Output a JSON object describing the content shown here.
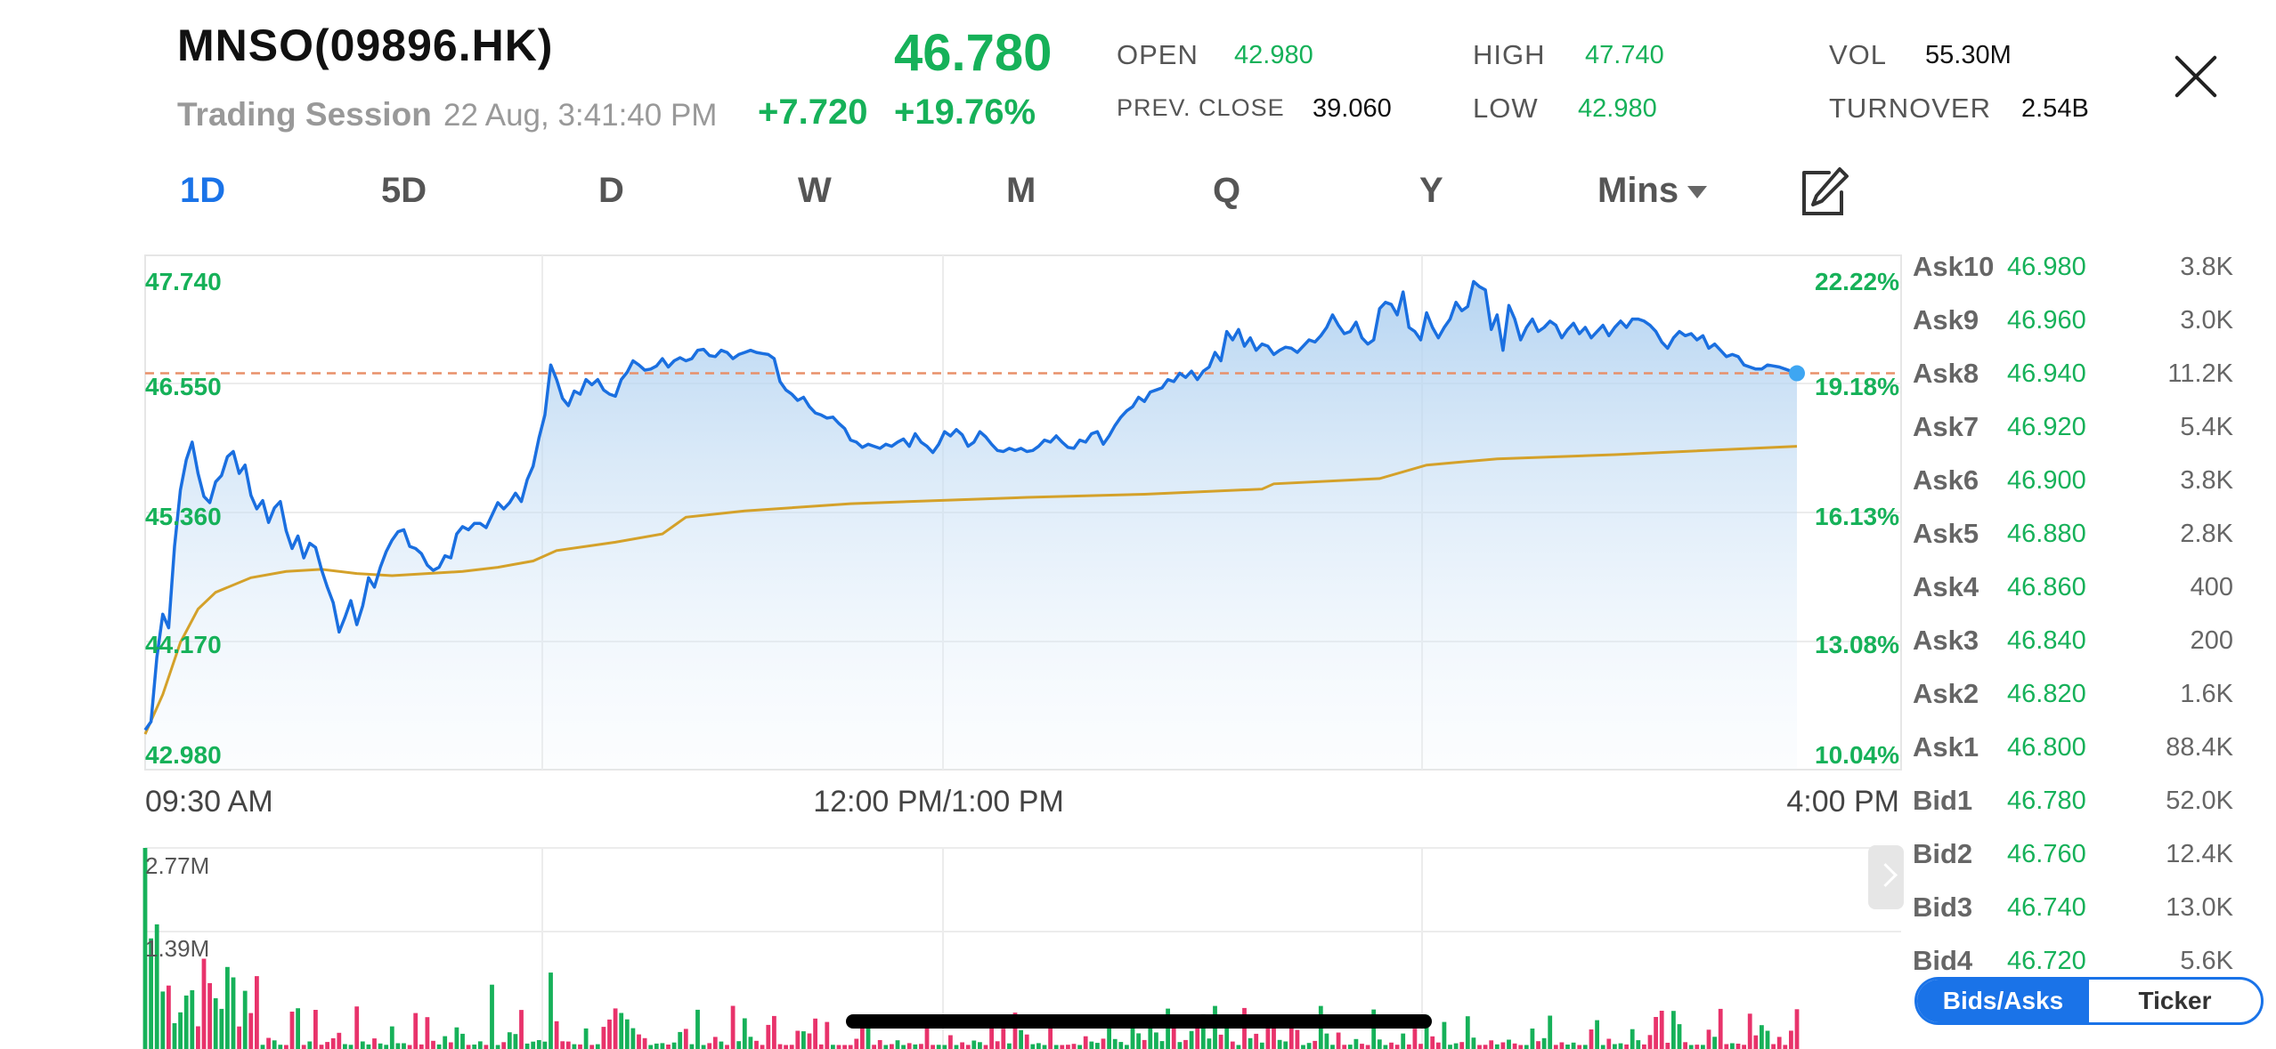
{
  "header": {
    "title": "MNSO(09896.HK)",
    "session_label": "Trading Session",
    "session_time": "22 Aug, 3:41:40 PM",
    "price": "46.780",
    "change": "+7.720",
    "change_pct": "+19.76%"
  },
  "stats": {
    "open_label": "OPEN",
    "open": "42.980",
    "prev_close_label": "PREV. CLOSE",
    "prev_close": "39.060",
    "high_label": "HIGH",
    "high": "47.740",
    "low_label": "LOW",
    "low": "42.980",
    "vol_label": "VOL",
    "vol": "55.30M",
    "turnover_label": "TURNOVER",
    "turnover": "2.54B"
  },
  "tabs": [
    {
      "label": "1D",
      "active": true
    },
    {
      "label": "5D",
      "active": false
    },
    {
      "label": "D",
      "active": false
    },
    {
      "label": "W",
      "active": false
    },
    {
      "label": "M",
      "active": false
    },
    {
      "label": "Q",
      "active": false
    },
    {
      "label": "Y",
      "active": false
    },
    {
      "label": "Mins",
      "active": false
    }
  ],
  "colors": {
    "up": "#16b159",
    "down": "#e8336b",
    "price_line": "#1a6fe0",
    "avg_line": "#d4a12a",
    "ref_line": "#e8906a",
    "accent": "#1a73e8"
  },
  "chart_data": {
    "type": "line",
    "y_left_ticks": [
      "47.740",
      "46.550",
      "45.360",
      "44.170",
      "42.980"
    ],
    "y_right_ticks": [
      "22.22%",
      "19.18%",
      "16.13%",
      "13.08%",
      "10.04%"
    ],
    "x_ticks": [
      "09:30 AM",
      "12:00 PM/1:00 PM",
      "4:00 PM"
    ],
    "ylim": [
      42.98,
      47.74
    ],
    "reference_price": 46.78,
    "price_series": [
      [
        0,
        43.36
      ],
      [
        1,
        43.44
      ],
      [
        2,
        44.06
      ],
      [
        3,
        44.47
      ],
      [
        4,
        44.34
      ],
      [
        5,
        45.12
      ],
      [
        6,
        45.66
      ],
      [
        7,
        45.95
      ],
      [
        8,
        46.12
      ],
      [
        9,
        45.82
      ],
      [
        10,
        45.6
      ],
      [
        11,
        45.54
      ],
      [
        12,
        45.74
      ],
      [
        13,
        45.8
      ],
      [
        14,
        45.98
      ],
      [
        15,
        46.03
      ],
      [
        16,
        45.82
      ],
      [
        17,
        45.9
      ],
      [
        18,
        45.61
      ],
      [
        19,
        45.48
      ],
      [
        20,
        45.56
      ],
      [
        21,
        45.35
      ],
      [
        22,
        45.49
      ],
      [
        23,
        45.55
      ],
      [
        24,
        45.27
      ],
      [
        25,
        45.1
      ],
      [
        26,
        45.22
      ],
      [
        27,
        45.01
      ],
      [
        28,
        45.15
      ],
      [
        29,
        45.11
      ],
      [
        30,
        44.9
      ],
      [
        31,
        44.73
      ],
      [
        32,
        44.58
      ],
      [
        33,
        44.3
      ],
      [
        34,
        44.44
      ],
      [
        35,
        44.6
      ],
      [
        36,
        44.37
      ],
      [
        37,
        44.55
      ],
      [
        38,
        44.82
      ],
      [
        39,
        44.73
      ],
      [
        40,
        44.92
      ],
      [
        41,
        45.07
      ],
      [
        42,
        45.18
      ],
      [
        43,
        45.26
      ],
      [
        44,
        45.28
      ],
      [
        45,
        45.12
      ],
      [
        46,
        45.1
      ],
      [
        47,
        45.05
      ],
      [
        48,
        44.94
      ],
      [
        49,
        44.89
      ],
      [
        50,
        44.92
      ],
      [
        51,
        45.03
      ],
      [
        52,
        45.01
      ],
      [
        53,
        45.24
      ],
      [
        54,
        45.31
      ],
      [
        55,
        45.28
      ],
      [
        56,
        45.34
      ],
      [
        57,
        45.34
      ],
      [
        58,
        45.3
      ],
      [
        59,
        45.42
      ],
      [
        60,
        45.54
      ],
      [
        61,
        45.48
      ],
      [
        62,
        45.54
      ],
      [
        63,
        45.63
      ],
      [
        64,
        45.55
      ],
      [
        65,
        45.76
      ],
      [
        66,
        45.89
      ],
      [
        67,
        46.16
      ],
      [
        68,
        46.38
      ],
      [
        69,
        46.86
      ],
      [
        70,
        46.72
      ],
      [
        71,
        46.54
      ],
      [
        72,
        46.47
      ],
      [
        73,
        46.61
      ],
      [
        74,
        46.58
      ],
      [
        75,
        46.72
      ],
      [
        76,
        46.67
      ],
      [
        77,
        46.72
      ],
      [
        78,
        46.62
      ],
      [
        79,
        46.58
      ],
      [
        80,
        46.56
      ],
      [
        81,
        46.72
      ],
      [
        82,
        46.79
      ],
      [
        83,
        46.9
      ],
      [
        84,
        46.86
      ],
      [
        85,
        46.81
      ],
      [
        86,
        46.82
      ],
      [
        87,
        46.85
      ],
      [
        88,
        46.92
      ],
      [
        89,
        46.84
      ],
      [
        90,
        46.9
      ],
      [
        91,
        46.93
      ],
      [
        92,
        46.9
      ],
      [
        93,
        46.92
      ],
      [
        94,
        47.0
      ],
      [
        95,
        47.01
      ],
      [
        96,
        46.95
      ],
      [
        97,
        46.94
      ],
      [
        98,
        47.0
      ],
      [
        99,
        46.98
      ],
      [
        100,
        46.92
      ],
      [
        101,
        46.96
      ],
      [
        102,
        46.98
      ],
      [
        103,
        47.0
      ],
      [
        104,
        46.98
      ],
      [
        105,
        46.97
      ],
      [
        106,
        46.96
      ],
      [
        107,
        46.92
      ],
      [
        108,
        46.7
      ],
      [
        109,
        46.62
      ],
      [
        110,
        46.58
      ],
      [
        111,
        46.52
      ],
      [
        112,
        46.55
      ],
      [
        113,
        46.46
      ],
      [
        114,
        46.4
      ],
      [
        115,
        46.38
      ],
      [
        116,
        46.35
      ],
      [
        117,
        46.36
      ],
      [
        118,
        46.3
      ],
      [
        119,
        46.25
      ],
      [
        120,
        46.14
      ],
      [
        121,
        46.12
      ],
      [
        122,
        46.07
      ],
      [
        123,
        46.1
      ],
      [
        124,
        46.08
      ],
      [
        125,
        46.06
      ],
      [
        126,
        46.1
      ],
      [
        127,
        46.08
      ],
      [
        128,
        46.12
      ],
      [
        129,
        46.15
      ],
      [
        130,
        46.08
      ],
      [
        131,
        46.2
      ],
      [
        132,
        46.12
      ],
      [
        133,
        46.08
      ],
      [
        134,
        46.02
      ],
      [
        135,
        46.1
      ],
      [
        136,
        46.22
      ],
      [
        137,
        46.18
      ],
      [
        138,
        46.24
      ],
      [
        139,
        46.19
      ],
      [
        140,
        46.08
      ],
      [
        141,
        46.12
      ],
      [
        142,
        46.22
      ],
      [
        143,
        46.17
      ],
      [
        144,
        46.1
      ],
      [
        145,
        46.04
      ],
      [
        146,
        46.03
      ],
      [
        147,
        46.06
      ],
      [
        148,
        46.04
      ],
      [
        149,
        46.06
      ],
      [
        150,
        46.03
      ],
      [
        151,
        46.04
      ],
      [
        152,
        46.08
      ],
      [
        153,
        46.14
      ],
      [
        154,
        46.12
      ],
      [
        155,
        46.18
      ],
      [
        156,
        46.12
      ],
      [
        157,
        46.07
      ],
      [
        158,
        46.06
      ],
      [
        159,
        46.14
      ],
      [
        160,
        46.12
      ],
      [
        161,
        46.2
      ],
      [
        162,
        46.22
      ],
      [
        163,
        46.1
      ],
      [
        164,
        46.18
      ],
      [
        165,
        46.28
      ],
      [
        166,
        46.36
      ],
      [
        167,
        46.42
      ],
      [
        168,
        46.46
      ],
      [
        169,
        46.55
      ],
      [
        170,
        46.51
      ],
      [
        171,
        46.6
      ],
      [
        172,
        46.62
      ],
      [
        173,
        46.64
      ],
      [
        174,
        46.72
      ],
      [
        175,
        46.7
      ],
      [
        176,
        46.78
      ],
      [
        177,
        46.74
      ],
      [
        178,
        46.8
      ],
      [
        179,
        46.72
      ],
      [
        180,
        46.8
      ],
      [
        181,
        46.84
      ],
      [
        182,
        46.98
      ],
      [
        183,
        46.9
      ],
      [
        184,
        47.18
      ],
      [
        185,
        47.1
      ],
      [
        186,
        47.2
      ],
      [
        187,
        47.04
      ],
      [
        188,
        47.12
      ],
      [
        189,
        47.0
      ],
      [
        190,
        47.06
      ],
      [
        191,
        47.04
      ],
      [
        192,
        46.96
      ],
      [
        193,
        47.0
      ],
      [
        194,
        47.03
      ],
      [
        195,
        47.02
      ],
      [
        196,
        46.98
      ],
      [
        197,
        47.04
      ],
      [
        198,
        47.1
      ],
      [
        199,
        47.08
      ],
      [
        200,
        47.14
      ],
      [
        201,
        47.22
      ],
      [
        202,
        47.34
      ],
      [
        203,
        47.24
      ],
      [
        204,
        47.16
      ],
      [
        205,
        47.18
      ],
      [
        206,
        47.27
      ],
      [
        207,
        47.12
      ],
      [
        208,
        47.06
      ],
      [
        209,
        47.1
      ],
      [
        210,
        47.4
      ],
      [
        211,
        47.46
      ],
      [
        212,
        47.44
      ],
      [
        213,
        47.34
      ],
      [
        214,
        47.56
      ],
      [
        215,
        47.22
      ],
      [
        216,
        47.18
      ],
      [
        217,
        47.1
      ],
      [
        218,
        47.36
      ],
      [
        219,
        47.22
      ],
      [
        220,
        47.12
      ],
      [
        221,
        47.22
      ],
      [
        222,
        47.3
      ],
      [
        223,
        47.46
      ],
      [
        224,
        47.38
      ],
      [
        225,
        47.42
      ],
      [
        226,
        47.66
      ],
      [
        227,
        47.61
      ],
      [
        228,
        47.58
      ],
      [
        229,
        47.2
      ],
      [
        230,
        47.34
      ],
      [
        231,
        47.0
      ],
      [
        232,
        47.43
      ],
      [
        233,
        47.3
      ],
      [
        234,
        47.1
      ],
      [
        235,
        47.22
      ],
      [
        236,
        47.3
      ],
      [
        237,
        47.18
      ],
      [
        238,
        47.22
      ],
      [
        239,
        47.28
      ],
      [
        240,
        47.24
      ],
      [
        241,
        47.12
      ],
      [
        242,
        47.2
      ],
      [
        243,
        47.26
      ],
      [
        244,
        47.16
      ],
      [
        245,
        47.22
      ],
      [
        246,
        47.12
      ],
      [
        247,
        47.18
      ],
      [
        248,
        47.24
      ],
      [
        249,
        47.14
      ],
      [
        250,
        47.22
      ],
      [
        251,
        47.28
      ],
      [
        252,
        47.22
      ],
      [
        253,
        47.3
      ],
      [
        254,
        47.3
      ],
      [
        255,
        47.28
      ],
      [
        256,
        47.24
      ],
      [
        257,
        47.18
      ],
      [
        258,
        47.08
      ],
      [
        259,
        47.02
      ],
      [
        260,
        47.12
      ],
      [
        261,
        47.18
      ],
      [
        262,
        47.14
      ],
      [
        263,
        47.16
      ],
      [
        264,
        47.1
      ],
      [
        265,
        47.14
      ],
      [
        266,
        47.02
      ],
      [
        267,
        47.06
      ],
      [
        268,
        47.0
      ],
      [
        269,
        46.94
      ],
      [
        270,
        46.96
      ],
      [
        271,
        46.94
      ],
      [
        272,
        46.86
      ],
      [
        273,
        46.84
      ],
      [
        274,
        46.82
      ],
      [
        275,
        46.82
      ],
      [
        276,
        46.86
      ],
      [
        277,
        46.85
      ],
      [
        278,
        46.84
      ],
      [
        279,
        46.82
      ],
      [
        280,
        46.8
      ],
      [
        281,
        46.78
      ]
    ],
    "avg_series": [
      [
        0,
        43.32
      ],
      [
        3,
        43.7
      ],
      [
        6,
        44.2
      ],
      [
        9,
        44.52
      ],
      [
        12,
        44.68
      ],
      [
        18,
        44.82
      ],
      [
        24,
        44.88
      ],
      [
        30,
        44.9
      ],
      [
        36,
        44.86
      ],
      [
        42,
        44.84
      ],
      [
        48,
        44.86
      ],
      [
        54,
        44.88
      ],
      [
        60,
        44.92
      ],
      [
        66,
        44.98
      ],
      [
        70,
        45.08
      ],
      [
        80,
        45.16
      ],
      [
        88,
        45.24
      ],
      [
        92,
        45.4
      ],
      [
        102,
        45.46
      ],
      [
        120,
        45.53
      ],
      [
        140,
        45.57
      ],
      [
        150,
        45.59
      ],
      [
        170,
        45.62
      ],
      [
        190,
        45.67
      ],
      [
        192,
        45.72
      ],
      [
        210,
        45.77
      ],
      [
        218,
        45.9
      ],
      [
        230,
        45.96
      ],
      [
        250,
        46.0
      ],
      [
        281,
        46.08
      ]
    ],
    "volume_ticks": [
      "2.77M",
      "1.39M"
    ],
    "volume_max": 2.77
  },
  "order_book": [
    {
      "label": "Ask10",
      "price": "46.980",
      "vol": "3.8K"
    },
    {
      "label": "Ask9",
      "price": "46.960",
      "vol": "3.0K"
    },
    {
      "label": "Ask8",
      "price": "46.940",
      "vol": "11.2K"
    },
    {
      "label": "Ask7",
      "price": "46.920",
      "vol": "5.4K"
    },
    {
      "label": "Ask6",
      "price": "46.900",
      "vol": "3.8K"
    },
    {
      "label": "Ask5",
      "price": "46.880",
      "vol": "2.8K"
    },
    {
      "label": "Ask4",
      "price": "46.860",
      "vol": "400"
    },
    {
      "label": "Ask3",
      "price": "46.840",
      "vol": "200"
    },
    {
      "label": "Ask2",
      "price": "46.820",
      "vol": "1.6K"
    },
    {
      "label": "Ask1",
      "price": "46.800",
      "vol": "88.4K"
    },
    {
      "label": "Bid1",
      "price": "46.780",
      "vol": "52.0K"
    },
    {
      "label": "Bid2",
      "price": "46.760",
      "vol": "12.4K"
    },
    {
      "label": "Bid3",
      "price": "46.740",
      "vol": "13.0K"
    },
    {
      "label": "Bid4",
      "price": "46.720",
      "vol": "5.6K"
    }
  ],
  "toggle": {
    "bids_asks": "Bids/Asks",
    "ticker": "Ticker"
  }
}
